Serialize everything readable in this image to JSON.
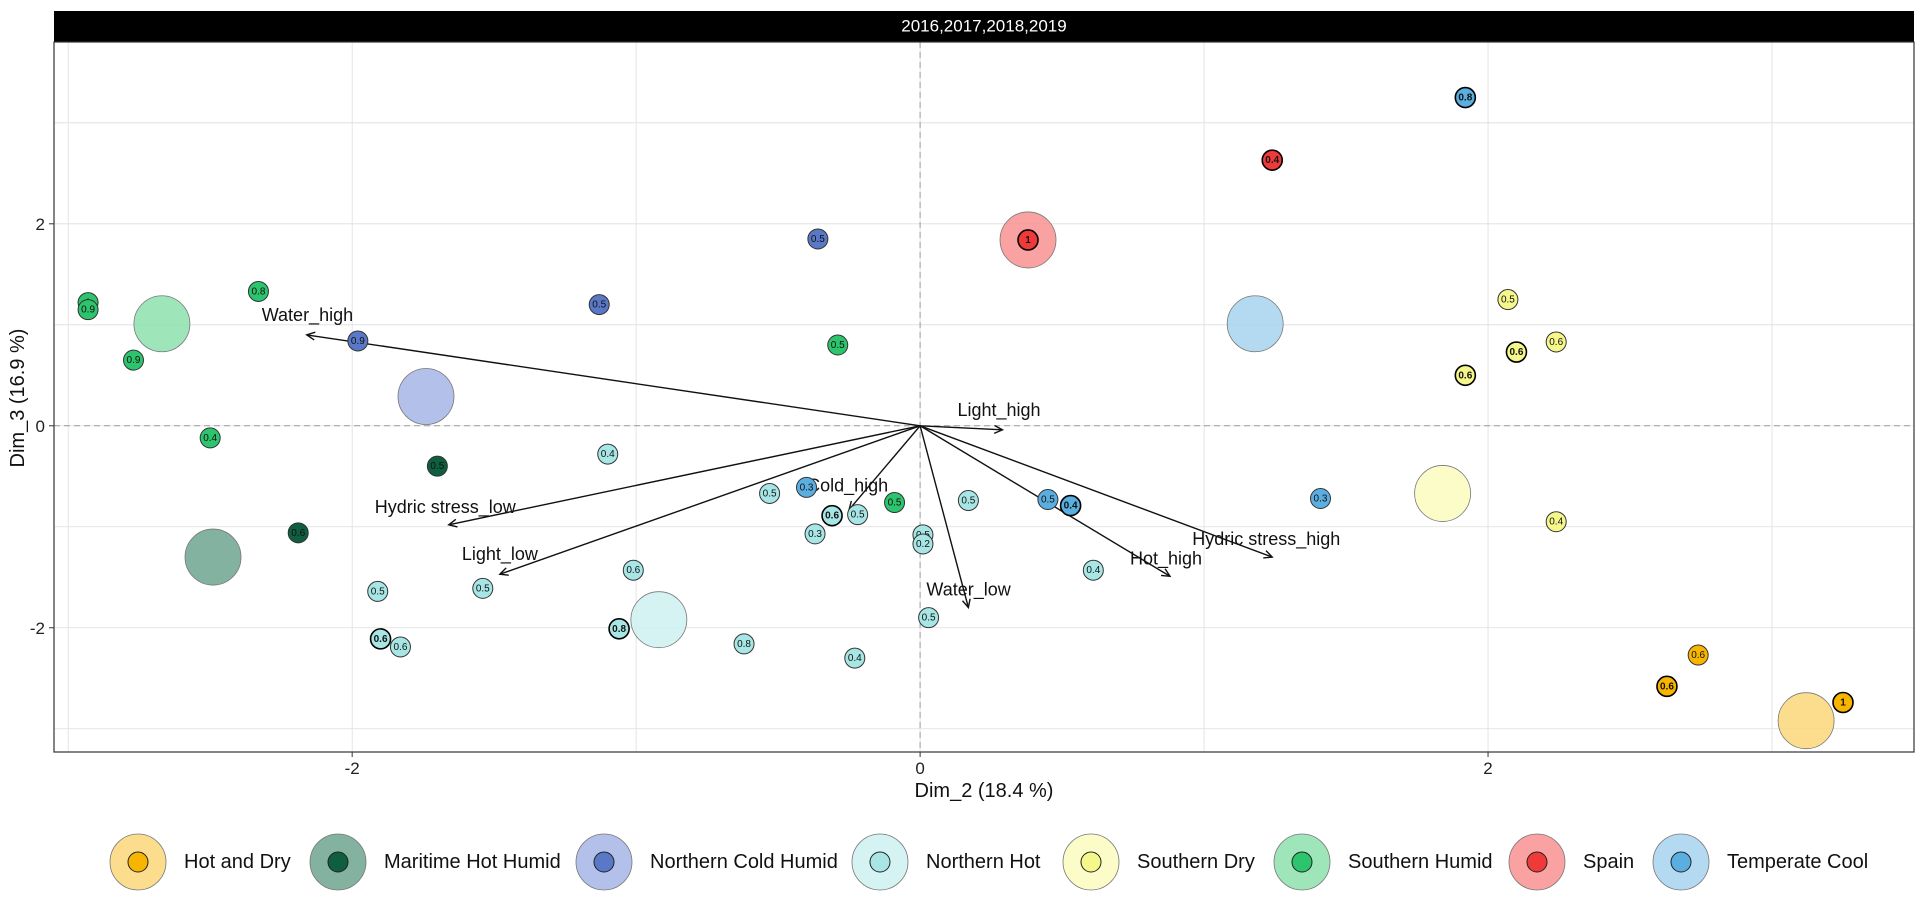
{
  "chart_data": {
    "type": "scatter",
    "title": "",
    "panel_strip": "2016,2017,2018,2019",
    "xlabel": "Dim_2 (18.4 %)",
    "ylabel": "Dim_3 (16.9 %)",
    "xlim": [
      -3.05,
      3.5
    ],
    "ylim": [
      -3.23,
      3.8
    ],
    "xticks": [
      -2,
      0,
      2
    ],
    "yticks": [
      -2,
      0,
      2
    ],
    "grid": true,
    "legend_position": "bottom",
    "groups": [
      {
        "name": "Hot and Dry",
        "color": "#f7b500",
        "light": "#fbd77a"
      },
      {
        "name": "Maritime Hot Humid",
        "color": "#0e5e40",
        "light": "#6fa58f"
      },
      {
        "name": "Northern Cold Humid",
        "color": "#5a78c8",
        "light": "#a6b6e6"
      },
      {
        "name": "Northern Hot",
        "color": "#a8e6e6",
        "light": "#cdf1f0"
      },
      {
        "name": "Southern Dry",
        "color": "#f6f78a",
        "light": "#fbfbc0"
      },
      {
        "name": "Southern Humid",
        "color": "#2cc46c",
        "light": "#8ee0ae"
      },
      {
        "name": "Spain",
        "color": "#f03a3a",
        "light": "#f99090"
      },
      {
        "name": "Temperate Cool",
        "color": "#5aaee0",
        "light": "#a7d3ee"
      }
    ],
    "centroids": [
      {
        "group": "Hot and Dry",
        "x": 3.12,
        "y": -2.92
      },
      {
        "group": "Maritime Hot Humid",
        "x": -2.49,
        "y": -1.3
      },
      {
        "group": "Northern Cold Humid",
        "x": -1.74,
        "y": 0.29
      },
      {
        "group": "Northern Hot",
        "x": -0.92,
        "y": -1.92
      },
      {
        "group": "Southern Dry",
        "x": 1.84,
        "y": -0.67
      },
      {
        "group": "Southern Humid",
        "x": -2.67,
        "y": 1.01
      },
      {
        "group": "Spain",
        "x": 0.38,
        "y": 1.84
      },
      {
        "group": "Temperate Cool",
        "x": 1.18,
        "y": 1.01
      }
    ],
    "points": [
      {
        "group": "Hot and Dry",
        "x": 2.63,
        "y": -2.58,
        "label": "0.6",
        "bold": true
      },
      {
        "group": "Hot and Dry",
        "x": 2.74,
        "y": -2.27,
        "label": "0.6",
        "bold": false
      },
      {
        "group": "Hot and Dry",
        "x": 3.25,
        "y": -2.74,
        "label": "1",
        "bold": true
      },
      {
        "group": "Maritime Hot Humid",
        "x": -1.7,
        "y": -0.4,
        "label": "0.5",
        "bold": false
      },
      {
        "group": "Maritime Hot Humid",
        "x": -2.19,
        "y": -1.06,
        "label": "0.6",
        "bold": false
      },
      {
        "group": "Northern Cold Humid",
        "x": -0.36,
        "y": 1.85,
        "label": "0.5",
        "bold": false
      },
      {
        "group": "Northern Cold Humid",
        "x": -1.13,
        "y": 1.2,
        "label": "0.5",
        "bold": false
      },
      {
        "group": "Northern Cold Humid",
        "x": -1.98,
        "y": 0.84,
        "label": "0.9",
        "bold": false
      },
      {
        "group": "Northern Hot",
        "x": -1.1,
        "y": -0.28,
        "label": "0.4",
        "bold": false
      },
      {
        "group": "Northern Hot",
        "x": -0.53,
        "y": -0.67,
        "label": "0.5",
        "bold": false
      },
      {
        "group": "Northern Hot",
        "x": -0.31,
        "y": -0.89,
        "label": "0.6",
        "bold": true
      },
      {
        "group": "Northern Hot",
        "x": -0.22,
        "y": -0.88,
        "label": "0.5",
        "bold": false
      },
      {
        "group": "Northern Hot",
        "x": -0.37,
        "y": -1.07,
        "label": "0.3",
        "bold": false
      },
      {
        "group": "Northern Hot",
        "x": 0.01,
        "y": -1.08,
        "label": "0.5",
        "bold": false
      },
      {
        "group": "Northern Hot",
        "x": 0.01,
        "y": -1.17,
        "label": "0.2",
        "bold": false
      },
      {
        "group": "Northern Hot",
        "x": 0.17,
        "y": -0.74,
        "label": "0.5",
        "bold": false
      },
      {
        "group": "Northern Hot",
        "x": 0.61,
        "y": -1.43,
        "label": "0.4",
        "bold": false
      },
      {
        "group": "Northern Hot",
        "x": -1.01,
        "y": -1.43,
        "label": "0.6",
        "bold": false
      },
      {
        "group": "Northern Hot",
        "x": -1.54,
        "y": -1.61,
        "label": "0.5",
        "bold": false
      },
      {
        "group": "Northern Hot",
        "x": -1.91,
        "y": -1.64,
        "label": "0.5",
        "bold": false
      },
      {
        "group": "Northern Hot",
        "x": -1.9,
        "y": -2.11,
        "label": "0.6",
        "bold": true
      },
      {
        "group": "Northern Hot",
        "x": -1.83,
        "y": -2.19,
        "label": "0.6",
        "bold": false
      },
      {
        "group": "Northern Hot",
        "x": -1.06,
        "y": -2.01,
        "label": "0.8",
        "bold": true
      },
      {
        "group": "Northern Hot",
        "x": -0.62,
        "y": -2.16,
        "label": "0.8",
        "bold": false
      },
      {
        "group": "Northern Hot",
        "x": -0.23,
        "y": -2.3,
        "label": "0.4",
        "bold": false
      },
      {
        "group": "Northern Hot",
        "x": 0.03,
        "y": -1.9,
        "label": "0.5",
        "bold": false
      },
      {
        "group": "Southern Dry",
        "x": 2.07,
        "y": 1.25,
        "label": "0.5",
        "bold": false
      },
      {
        "group": "Southern Dry",
        "x": 2.1,
        "y": 0.73,
        "label": "0.6",
        "bold": true
      },
      {
        "group": "Southern Dry",
        "x": 2.24,
        "y": 0.83,
        "label": "0.6",
        "bold": false
      },
      {
        "group": "Southern Dry",
        "x": 1.92,
        "y": 0.5,
        "label": "0.6",
        "bold": true
      },
      {
        "group": "Southern Dry",
        "x": 2.24,
        "y": -0.95,
        "label": "0.4",
        "bold": false
      },
      {
        "group": "Southern Humid",
        "x": -2.93,
        "y": 1.22,
        "label": "1",
        "bold": false
      },
      {
        "group": "Southern Humid",
        "x": -2.93,
        "y": 1.15,
        "label": "0.9",
        "bold": false
      },
      {
        "group": "Southern Humid",
        "x": -2.33,
        "y": 1.33,
        "label": "0.8",
        "bold": false
      },
      {
        "group": "Southern Humid",
        "x": -2.77,
        "y": 0.65,
        "label": "0.9",
        "bold": false
      },
      {
        "group": "Southern Humid",
        "x": -2.5,
        "y": -0.12,
        "label": "0.4",
        "bold": false
      },
      {
        "group": "Southern Humid",
        "x": -0.29,
        "y": 0.8,
        "label": "0.5",
        "bold": false
      },
      {
        "group": "Southern Humid",
        "x": -0.09,
        "y": -0.76,
        "label": "0.5",
        "bold": false
      },
      {
        "group": "Spain",
        "x": 0.38,
        "y": 1.84,
        "label": "1",
        "bold": true
      },
      {
        "group": "Spain",
        "x": 1.24,
        "y": 2.63,
        "label": "0.4",
        "bold": true
      },
      {
        "group": "Temperate Cool",
        "x": 1.92,
        "y": 3.25,
        "label": "0.8",
        "bold": true
      },
      {
        "group": "Temperate Cool",
        "x": -0.4,
        "y": -0.61,
        "label": "0.3",
        "bold": false
      },
      {
        "group": "Temperate Cool",
        "x": 0.45,
        "y": -0.73,
        "label": "0.5",
        "bold": false
      },
      {
        "group": "Temperate Cool",
        "x": 0.53,
        "y": -0.79,
        "label": "0.4",
        "bold": true
      },
      {
        "group": "Temperate Cool",
        "x": 1.41,
        "y": -0.72,
        "label": "0.3",
        "bold": false
      }
    ],
    "vectors": [
      {
        "label": "Water_high",
        "x": -2.16,
        "y": 0.9
      },
      {
        "label": "Light_high",
        "x": 0.29,
        "y": -0.04
      },
      {
        "label": "Hydric stress_low",
        "x": -1.66,
        "y": -0.98
      },
      {
        "label": "Light_low",
        "x": -1.48,
        "y": -1.47
      },
      {
        "label": "Cold_high",
        "x": -0.25,
        "y": -0.83
      },
      {
        "label": "Water_low",
        "x": 0.17,
        "y": -1.8
      },
      {
        "label": "Hot_high",
        "x": 0.88,
        "y": -1.49
      },
      {
        "label": "Hydric stress_high",
        "x": 1.24,
        "y": -1.3
      }
    ]
  }
}
